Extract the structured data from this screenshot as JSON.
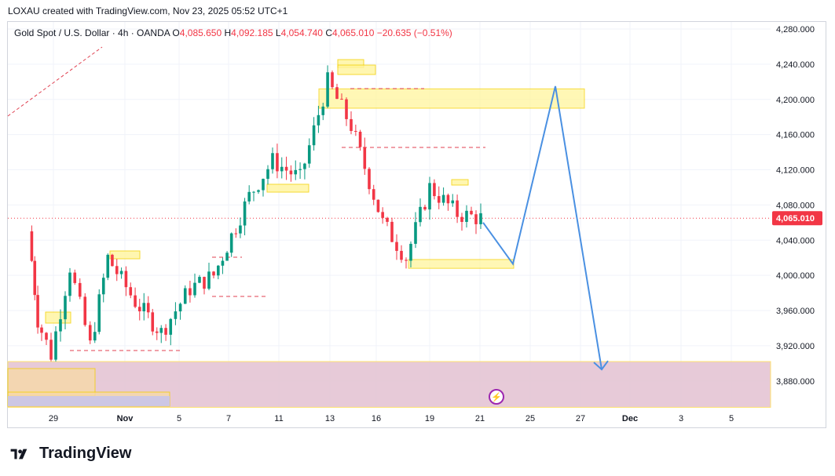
{
  "header": {
    "created_by": "LOXAU created with TradingView.com, Nov 23, 2025 05:52 UTC+1"
  },
  "legend": {
    "symbol": "Gold Spot / U.S. Dollar · 4h · OANDA",
    "open_label": "O",
    "open": "4,085.650",
    "high_label": "H",
    "high": "4,092.185",
    "low_label": "L",
    "low": "4,054.740",
    "close_label": "C",
    "close": "4,065.010",
    "change": "−20.635 (−0.51%)"
  },
  "brand": {
    "name": "TradingView"
  },
  "colors": {
    "up": "#089981",
    "down": "#f23645",
    "zone_fill": "#fff59d",
    "zone_border": "#f5d000",
    "support_fill": "#e6c8d6",
    "projection": "#4a90e2",
    "dash": "#e04050"
  },
  "chart_data": {
    "type": "candlestick",
    "interval": "4h",
    "ylim": [
      3850,
      4300
    ],
    "y_ticks": [
      3880,
      3920,
      3960,
      4000,
      4040,
      4080,
      4120,
      4160,
      4200,
      4240,
      4280
    ],
    "y_tick_labels": [
      "3,880.000",
      "3,920.000",
      "3,960.000",
      "4,000.000",
      "4,040.000",
      "4,080.000",
      "4,120.000",
      "4,160.000",
      "4,200.000",
      "4,240.000",
      "4,280.000"
    ],
    "current_price": 4065.01,
    "current_price_label": "4,065.010",
    "x_ticks": [
      "29",
      "Nov",
      "5",
      "7",
      "11",
      "13",
      "16",
      "19",
      "21",
      "25",
      "27",
      "Dec",
      "3",
      "5"
    ],
    "approx_close_path": [
      {
        "x": "Oct 27",
        "y": 4050
      },
      {
        "x": "Oct 28",
        "y": 3950
      },
      {
        "x": "Oct 29",
        "y": 3910
      },
      {
        "x": "Oct 30",
        "y": 4010
      },
      {
        "x": "Oct 31",
        "y": 3920
      },
      {
        "x": "Nov 3",
        "y": 4020
      },
      {
        "x": "Nov 4",
        "y": 3970
      },
      {
        "x": "Nov 5",
        "y": 3935
      },
      {
        "x": "Nov 6",
        "y": 3985
      },
      {
        "x": "Nov 7",
        "y": 4000
      },
      {
        "x": "Nov 10",
        "y": 4090
      },
      {
        "x": "Nov 11",
        "y": 4130
      },
      {
        "x": "Nov 12",
        "y": 4110
      },
      {
        "x": "Nov 13",
        "y": 4220
      },
      {
        "x": "Nov 14",
        "y": 4170
      },
      {
        "x": "Nov 17",
        "y": 4060
      },
      {
        "x": "Nov 18",
        "y": 4020
      },
      {
        "x": "Nov 19",
        "y": 4100
      },
      {
        "x": "Nov 20",
        "y": 4070
      },
      {
        "x": "Nov 21",
        "y": 4065
      }
    ],
    "zones": [
      {
        "name": "supply-zone",
        "y0": 4190,
        "y1": 4212
      },
      {
        "name": "demand-zone",
        "y0": 4008,
        "y1": 4018
      },
      {
        "name": "support-area",
        "y0": 3850,
        "y1": 3902
      }
    ],
    "projection_path": [
      {
        "x": "Nov 21",
        "y": 4060
      },
      {
        "x": "Nov 24",
        "y": 4013
      },
      {
        "x": "Nov 26",
        "y": 4215
      },
      {
        "x": "Nov 28",
        "y": 3893
      }
    ]
  }
}
